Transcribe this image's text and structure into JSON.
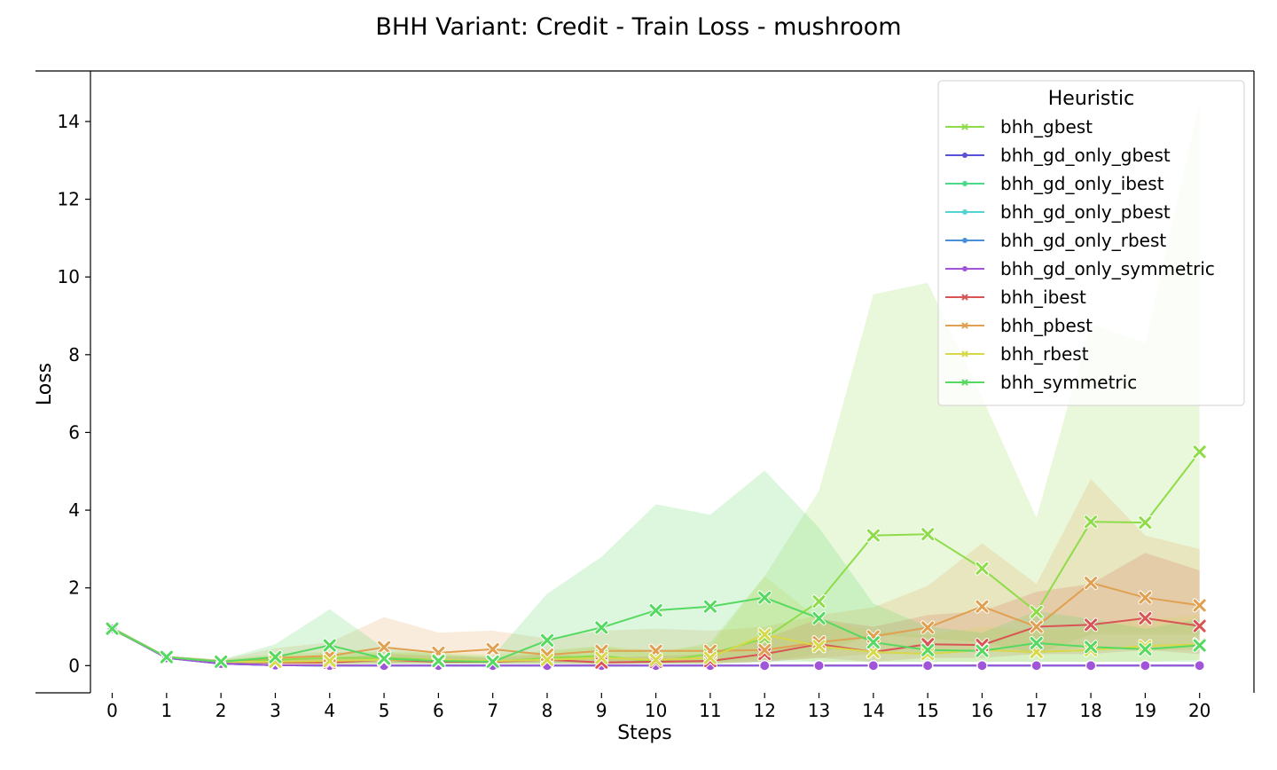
{
  "chart_data": {
    "type": "line",
    "title": "BHH Variant: Credit - Train Loss - mushroom",
    "xlabel": "Steps",
    "ylabel": "Loss",
    "xlim": [
      -0.4,
      21.0
    ],
    "ylim": [
      -0.7,
      15.3
    ],
    "x": [
      0,
      1,
      2,
      3,
      4,
      5,
      6,
      7,
      8,
      9,
      10,
      11,
      12,
      13,
      14,
      15,
      16,
      17,
      18,
      19,
      20
    ],
    "xticks": [
      "0",
      "1",
      "2",
      "3",
      "4",
      "5",
      "6",
      "7",
      "8",
      "9",
      "10",
      "11",
      "12",
      "13",
      "14",
      "15",
      "16",
      "17",
      "18",
      "19",
      "20"
    ],
    "yticks": [
      "0",
      "2",
      "4",
      "6",
      "8",
      "10",
      "12",
      "14"
    ],
    "ytick_values": [
      0,
      2,
      4,
      6,
      8,
      10,
      12,
      14
    ],
    "grid": false,
    "legend": {
      "title": "Heuristic",
      "placement": "top-right"
    },
    "series": [
      {
        "name": "bhh_gbest",
        "color": "#8fdc4a",
        "marker": "x",
        "values": [
          0.95,
          0.22,
          0.1,
          0.15,
          0.2,
          0.2,
          0.15,
          0.1,
          0.2,
          0.25,
          0.1,
          0.3,
          0.7,
          1.65,
          3.35,
          3.38,
          2.5,
          1.38,
          3.7,
          3.68,
          5.5
        ],
        "lower": [
          0.9,
          0.2,
          0.05,
          0.05,
          0.05,
          0.05,
          0.05,
          0.05,
          0.05,
          0.05,
          0.05,
          0.05,
          0.1,
          0.3,
          0.8,
          0.7,
          0.6,
          0.3,
          0.8,
          0.8,
          0.8
        ],
        "upper": [
          1.0,
          0.25,
          0.15,
          0.3,
          0.35,
          0.35,
          0.3,
          0.2,
          0.4,
          0.5,
          0.3,
          0.6,
          2.3,
          4.5,
          9.55,
          9.85,
          6.9,
          3.8,
          8.8,
          8.3,
          14.5
        ]
      },
      {
        "name": "bhh_gd_only_gbest",
        "color": "#5a52d6",
        "marker": "o",
        "values": [
          0.95,
          0.2,
          0.05,
          0.01,
          0.0,
          0.0,
          0.0,
          0.0,
          0.0,
          0.0,
          0.0,
          0.0,
          0.0,
          0.0,
          0.0,
          0.0,
          0.0,
          0.0,
          0.0,
          0.0,
          0.0
        ],
        "lower": null,
        "upper": null
      },
      {
        "name": "bhh_gd_only_ibest",
        "color": "#4cd98b",
        "marker": "o",
        "values": [
          0.95,
          0.2,
          0.05,
          0.01,
          0.0,
          0.0,
          0.0,
          0.0,
          0.0,
          0.0,
          0.0,
          0.0,
          0.0,
          0.0,
          0.0,
          0.0,
          0.0,
          0.0,
          0.0,
          0.0,
          0.0
        ],
        "lower": null,
        "upper": null
      },
      {
        "name": "bhh_gd_only_pbest",
        "color": "#55d3d0",
        "marker": "o",
        "values": [
          0.95,
          0.2,
          0.05,
          0.01,
          0.0,
          0.0,
          0.0,
          0.0,
          0.0,
          0.0,
          0.0,
          0.0,
          0.0,
          0.0,
          0.0,
          0.0,
          0.0,
          0.0,
          0.0,
          0.0,
          0.0
        ],
        "lower": null,
        "upper": null
      },
      {
        "name": "bhh_gd_only_rbest",
        "color": "#4a90d9",
        "marker": "o",
        "values": [
          0.95,
          0.2,
          0.05,
          0.01,
          0.0,
          0.0,
          0.0,
          0.0,
          0.0,
          0.0,
          0.0,
          0.0,
          0.0,
          0.0,
          0.0,
          0.0,
          0.0,
          0.0,
          0.0,
          0.0,
          0.0
        ],
        "lower": null,
        "upper": null
      },
      {
        "name": "bhh_gd_only_symmetric",
        "color": "#a055d9",
        "marker": "o",
        "values": [
          0.95,
          0.2,
          0.05,
          0.01,
          0.0,
          0.0,
          0.0,
          0.0,
          0.0,
          0.0,
          0.0,
          0.0,
          0.0,
          0.0,
          0.0,
          0.0,
          0.0,
          0.0,
          0.0,
          0.0,
          0.0
        ],
        "lower": null,
        "upper": null
      },
      {
        "name": "bhh_ibest",
        "color": "#d95454",
        "marker": "x",
        "values": [
          0.95,
          0.22,
          0.1,
          0.08,
          0.08,
          0.15,
          0.1,
          0.1,
          0.15,
          0.08,
          0.1,
          0.12,
          0.3,
          0.55,
          0.35,
          0.55,
          0.53,
          1.0,
          1.05,
          1.22,
          1.02
        ],
        "lower": [
          0.9,
          0.2,
          0.05,
          0.03,
          0.03,
          0.05,
          0.05,
          0.05,
          0.05,
          0.03,
          0.05,
          0.05,
          0.1,
          0.2,
          0.1,
          0.2,
          0.2,
          0.3,
          0.3,
          0.4,
          0.3
        ],
        "upper": [
          1.0,
          0.25,
          0.15,
          0.15,
          0.2,
          0.3,
          0.25,
          0.2,
          0.3,
          0.2,
          0.25,
          0.3,
          0.7,
          1.2,
          1.0,
          1.3,
          1.4,
          1.9,
          2.1,
          2.9,
          2.45
        ]
      },
      {
        "name": "bhh_pbest",
        "color": "#e0a050",
        "marker": "x",
        "values": [
          0.95,
          0.22,
          0.1,
          0.2,
          0.25,
          0.47,
          0.33,
          0.42,
          0.28,
          0.38,
          0.38,
          0.38,
          0.4,
          0.6,
          0.75,
          0.98,
          1.52,
          1.0,
          2.13,
          1.75,
          1.55
        ],
        "lower": [
          0.9,
          0.2,
          0.05,
          0.05,
          0.05,
          0.1,
          0.1,
          0.1,
          0.1,
          0.1,
          0.1,
          0.1,
          0.1,
          0.2,
          0.3,
          0.3,
          0.4,
          0.3,
          0.5,
          0.4,
          0.4
        ],
        "upper": [
          1.0,
          0.25,
          0.15,
          0.45,
          0.6,
          1.25,
          0.85,
          0.9,
          0.7,
          0.9,
          0.95,
          0.9,
          1.0,
          1.3,
          1.5,
          2.05,
          3.15,
          2.1,
          4.8,
          3.35,
          3.0
        ]
      },
      {
        "name": "bhh_rbest",
        "color": "#d7d94a",
        "marker": "x",
        "values": [
          0.95,
          0.22,
          0.1,
          0.1,
          0.12,
          0.15,
          0.15,
          0.12,
          0.15,
          0.2,
          0.15,
          0.2,
          0.8,
          0.5,
          0.35,
          0.3,
          0.4,
          0.35,
          0.4,
          0.5,
          0.55
        ],
        "lower": [
          0.9,
          0.2,
          0.05,
          0.03,
          0.03,
          0.05,
          0.05,
          0.05,
          0.05,
          0.05,
          0.05,
          0.05,
          0.2,
          0.1,
          0.1,
          0.1,
          0.1,
          0.1,
          0.1,
          0.1,
          0.15
        ],
        "upper": [
          1.0,
          0.25,
          0.15,
          0.25,
          0.3,
          0.35,
          0.35,
          0.3,
          0.35,
          0.5,
          0.4,
          0.5,
          2.3,
          1.2,
          0.9,
          0.8,
          1.0,
          0.9,
          1.0,
          1.2,
          1.3
        ]
      },
      {
        "name": "bhh_symmetric",
        "color": "#55d960",
        "marker": "x",
        "values": [
          0.95,
          0.22,
          0.1,
          0.22,
          0.52,
          0.18,
          0.12,
          0.1,
          0.65,
          0.98,
          1.42,
          1.52,
          1.75,
          1.22,
          0.6,
          0.4,
          0.38,
          0.58,
          0.48,
          0.42,
          0.52
        ],
        "lower": [
          0.9,
          0.2,
          0.05,
          0.05,
          0.05,
          0.05,
          0.05,
          0.05,
          0.05,
          0.05,
          0.05,
          0.05,
          0.1,
          0.1,
          0.1,
          0.1,
          0.1,
          0.1,
          0.1,
          0.1,
          0.1
        ],
        "upper": [
          1.0,
          0.25,
          0.15,
          0.55,
          1.45,
          0.45,
          0.3,
          0.25,
          1.85,
          2.8,
          4.15,
          3.88,
          5.02,
          3.55,
          1.6,
          1.0,
          0.85,
          1.4,
          1.2,
          0.95,
          1.2
        ]
      }
    ]
  }
}
